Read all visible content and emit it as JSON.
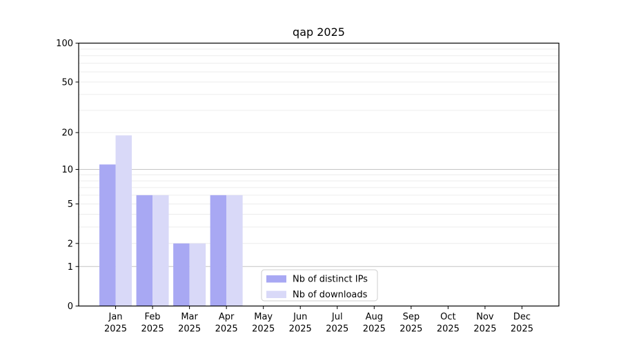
{
  "chart_data": {
    "type": "bar",
    "title": "qap 2025",
    "categories": [
      "Jan",
      "Feb",
      "Mar",
      "Apr",
      "May",
      "Jun",
      "Jul",
      "Aug",
      "Sep",
      "Oct",
      "Nov",
      "Dec"
    ],
    "year_suffix": "2025",
    "series": [
      {
        "name": "Nb of distinct IPs",
        "color": "#a8a8f3",
        "values": [
          11,
          6,
          2,
          6,
          0,
          0,
          0,
          0,
          0,
          0,
          0,
          0
        ]
      },
      {
        "name": "Nb of downloads",
        "color": "#d9d9f8",
        "values": [
          19,
          6,
          2,
          6,
          0,
          0,
          0,
          0,
          0,
          0,
          0,
          0
        ]
      }
    ],
    "yscale": "log1p",
    "ylim": [
      0,
      100
    ],
    "yticks": [
      0,
      1,
      2,
      5,
      10,
      20,
      50,
      100
    ],
    "gridlines": {
      "major": [
        1,
        10,
        100
      ],
      "minor": [
        2,
        3,
        4,
        5,
        6,
        7,
        8,
        9,
        20,
        30,
        40,
        50,
        60,
        70,
        80,
        90
      ],
      "major_color": "#c4c4c4",
      "minor_color": "#ececec"
    },
    "legend": {
      "position": "lower center inside",
      "border_color": "#cccccc",
      "background": "#ffffff"
    },
    "axis_color": "#000000",
    "text_color": "#000000",
    "background": "#ffffff"
  }
}
